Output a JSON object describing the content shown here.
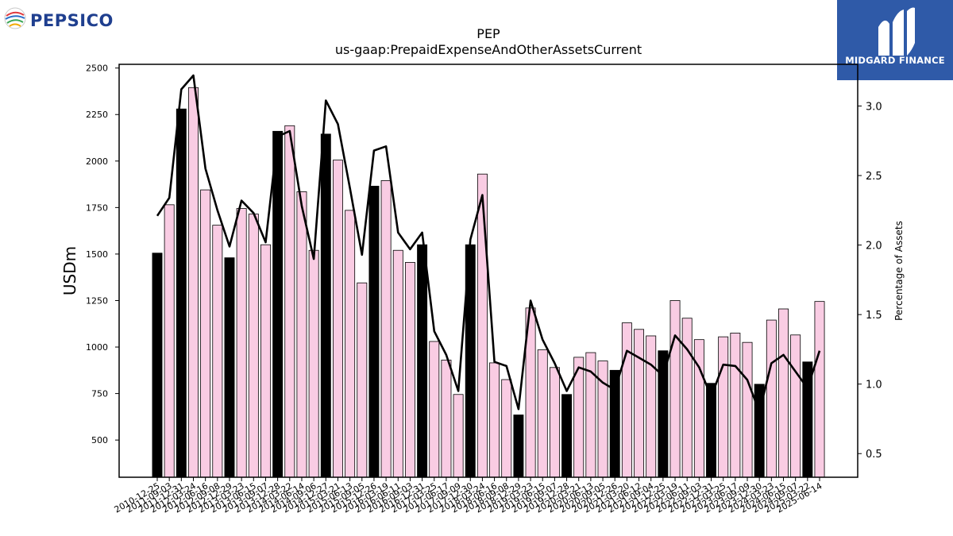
{
  "logos": {
    "left_brand": "PEPSICO",
    "right_brand": "MIDGARD FINANCE"
  },
  "chart_data": {
    "type": "bar",
    "title": "PEP",
    "subtitle": "us-gaap:PrepaidExpenseAndOtherAssetsCurrent",
    "ylabel": "USDm",
    "y2label": "Percentage of Assets",
    "ylim": [
      300,
      2520
    ],
    "y2lim": [
      0.33,
      3.3
    ],
    "yticks": [
      500,
      750,
      1000,
      1250,
      1500,
      1750,
      2000,
      2250,
      2500
    ],
    "y2ticks": [
      0.5,
      1.0,
      1.5,
      2.0,
      2.5,
      3.0
    ],
    "y2tick_labels": [
      "0.5",
      "1.0",
      "1.5",
      "2.0",
      "2.5",
      "3.0"
    ],
    "grid": false,
    "categories": [
      "2010-12-25",
      "2011-09-03",
      "2011-12-31",
      "2012-03-24",
      "2012-06-16",
      "2012-09-08",
      "2012-12-29",
      "2013-03-23",
      "2013-06-15",
      "2013-09-07",
      "2013-12-28",
      "2014-03-22",
      "2014-06-14",
      "2014-09-06",
      "2014-12-27",
      "2015-03-21",
      "2015-06-13",
      "2015-09-05",
      "2015-12-26",
      "2016-03-19",
      "2016-06-11",
      "2016-09-03",
      "2016-12-31",
      "2017-03-25",
      "2017-06-17",
      "2017-09-09",
      "2017-12-30",
      "2018-03-24",
      "2018-06-16",
      "2018-09-08",
      "2018-12-29",
      "2019-03-23",
      "2019-06-15",
      "2019-09-07",
      "2019-12-28",
      "2020-03-21",
      "2020-06-13",
      "2020-09-05",
      "2020-12-26",
      "2021-03-20",
      "2021-06-12",
      "2021-09-04",
      "2021-12-25",
      "2022-03-19",
      "2022-06-11",
      "2022-09-03",
      "2022-12-31",
      "2023-03-25",
      "2023-06-17",
      "2023-09-09",
      "2023-12-30",
      "2024-03-23",
      "2024-06-15",
      "2024-09-07",
      "2025-03-22",
      "2025-06-14"
    ],
    "xtick_labels": [
      "2010-12-25",
      "2011-09-03",
      "2011-12-31",
      "2012-03-24",
      "2012-06-16",
      "2012-09-08",
      "2012-12-29",
      "2013-03-23",
      "2013-06-15",
      "2013-09-07",
      "2013-12-28",
      "2014-03-22",
      "2014-06-14",
      "2014-09-06",
      "2014-12-27",
      "2015-03-21",
      "2015-06-13",
      "2015-09-05",
      "2015-12-26",
      "2016-03-19",
      "2016-06-11",
      "2016-09-03",
      "2016-12-31",
      "2017-03-25",
      "2017-06-17",
      "2017-09-09",
      "2017-12-30",
      "2018-03-24",
      "2018-06-16",
      "2018-09-08",
      "2018-12-29",
      "2019-03-23",
      "2019-06-15",
      "2019-09-07",
      "2019-12-28",
      "2020-03-21",
      "2020-06-13",
      "2020-09-05",
      "2020-12-26",
      "2021-03-20",
      "2021-06-12",
      "2021-09-04",
      "2021-12-25",
      "2022-03-19",
      "2022-06-11",
      "2022-09-03",
      "2022-12-31",
      "2023-03-25",
      "2023-06-17",
      "2023-09-09",
      "2023-12-30",
      "2024-03-23",
      "2024-06-15",
      "2024-09-07",
      "2025-03-22",
      "2025-06-14"
    ],
    "series": [
      {
        "kind": "bar",
        "values": [
          1505,
          1765,
          2280,
          2395,
          1845,
          1655,
          1480,
          1745,
          1715,
          1550,
          2160,
          2190,
          1835,
          1520,
          2145,
          2005,
          1735,
          1345,
          1865,
          1895,
          1520,
          1455,
          1550,
          1030,
          930,
          745,
          1550,
          1930,
          915,
          825,
          635,
          1210,
          985,
          890,
          745,
          945,
          970,
          925,
          875,
          1130,
          1095,
          1060,
          980,
          1250,
          1155,
          1040,
          805,
          1055,
          1075,
          1025,
          800,
          1145,
          1205,
          1065,
          920,
          1245
        ],
        "highlight": [
          true,
          false,
          true,
          false,
          false,
          false,
          true,
          false,
          false,
          false,
          true,
          false,
          false,
          false,
          true,
          false,
          false,
          false,
          true,
          false,
          false,
          false,
          true,
          false,
          false,
          false,
          true,
          false,
          false,
          false,
          true,
          false,
          false,
          false,
          true,
          false,
          false,
          false,
          true,
          false,
          false,
          false,
          true,
          false,
          false,
          false,
          true,
          false,
          false,
          false,
          true,
          false,
          false,
          false,
          true,
          false
        ]
      },
      {
        "kind": "line",
        "axis": "right",
        "values": [
          2.21,
          2.34,
          3.12,
          3.22,
          2.55,
          2.25,
          1.99,
          2.32,
          2.23,
          2.02,
          2.78,
          2.82,
          2.28,
          1.9,
          3.04,
          2.87,
          2.41,
          1.93,
          2.68,
          2.71,
          2.09,
          1.97,
          2.09,
          1.38,
          1.21,
          0.95,
          2.04,
          2.36,
          1.16,
          1.13,
          0.82,
          1.6,
          1.32,
          1.15,
          0.95,
          1.12,
          1.09,
          1.01,
          0.96,
          1.24,
          1.19,
          1.14,
          1.06,
          1.35,
          1.25,
          1.12,
          0.91,
          1.14,
          1.13,
          1.03,
          0.8,
          1.15,
          1.21,
          1.09,
          0.97,
          1.24
        ]
      }
    ],
    "colors": {
      "bar_highlight": "#000000",
      "bar_normal": "#f9cce3",
      "bar_edge": "#000000",
      "line": "#000000"
    }
  }
}
